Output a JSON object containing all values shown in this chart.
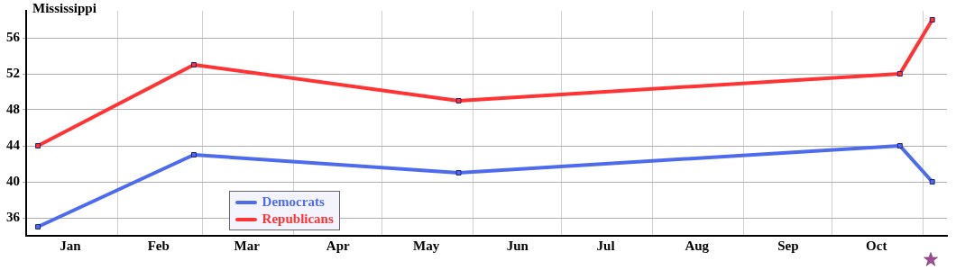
{
  "chart_data": {
    "type": "line",
    "title": "Mississippi",
    "series": [
      {
        "name": "Democrats",
        "color": "#4f6bed",
        "x": [
          "--01-05",
          "--02-27",
          "--05-27",
          "--10-24",
          "--11-04"
        ],
        "values": [
          35,
          43,
          41,
          44,
          40
        ]
      },
      {
        "name": "Republicans",
        "color": "#ff3333",
        "x": [
          "--01-05",
          "--02-27",
          "--05-27",
          "--10-24",
          "--11-04"
        ],
        "values": [
          44,
          53,
          49,
          52,
          58
        ]
      }
    ],
    "xlim": [
      "--01-01",
      "--11-09"
    ],
    "xticks": [
      {
        "value": "--01-16",
        "label": "Jan"
      },
      {
        "value": "--02-01",
        "label": null
      },
      {
        "value": "--02-15",
        "label": "Feb"
      },
      {
        "value": "--03-01",
        "label": null
      },
      {
        "value": "--03-16",
        "label": "Mar"
      },
      {
        "value": "--04-01",
        "label": null
      },
      {
        "value": "--04-16",
        "label": "Apr"
      },
      {
        "value": "--05-01",
        "label": null
      },
      {
        "value": "--05-16",
        "label": "May"
      },
      {
        "value": "--06-01",
        "label": null
      },
      {
        "value": "--06-16",
        "label": "Jun"
      },
      {
        "value": "--07-01",
        "label": null
      },
      {
        "value": "--07-16",
        "label": "Jul"
      },
      {
        "value": "--08-01",
        "label": null
      },
      {
        "value": "--08-16",
        "label": "Aug"
      },
      {
        "value": "--09-01",
        "label": null
      },
      {
        "value": "--09-16",
        "label": "Sep"
      },
      {
        "value": "--10-01",
        "label": null
      },
      {
        "value": "--10-16",
        "label": "Oct"
      },
      {
        "value": "--11-01",
        "label": null
      }
    ],
    "ylim": [
      34,
      59
    ],
    "yticks": [
      36,
      40,
      44,
      48,
      52,
      56
    ],
    "grid": true,
    "legend": "bottom",
    "marker": "square",
    "line_style": "solid"
  }
}
